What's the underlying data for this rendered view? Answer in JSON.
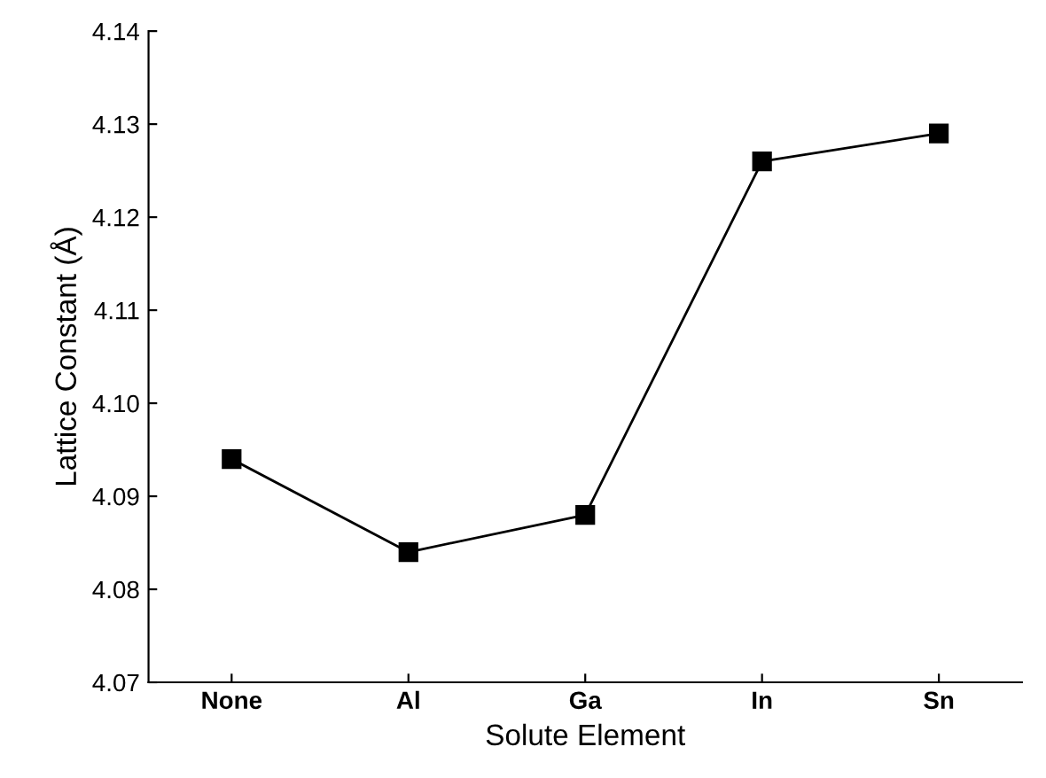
{
  "chart_data": {
    "type": "line",
    "xlabel": "Solute Element",
    "ylabel": "Lattice Constant (Å)",
    "categories": [
      "None",
      "Al",
      "Ga",
      "In",
      "Sn"
    ],
    "series": [
      {
        "color": "#000000",
        "values": [
          4.094,
          4.084,
          4.088,
          4.126,
          4.129
        ]
      }
    ],
    "ylim": [
      4.07,
      4.14
    ],
    "yticks": [
      4.07,
      4.08,
      4.09,
      {
        "value": 4.1,
        "label": "4.10"
      },
      4.11,
      4.12,
      4.13,
      4.14
    ],
    "marker": "square",
    "line_style": "solid",
    "grid": false,
    "legend": false
  }
}
